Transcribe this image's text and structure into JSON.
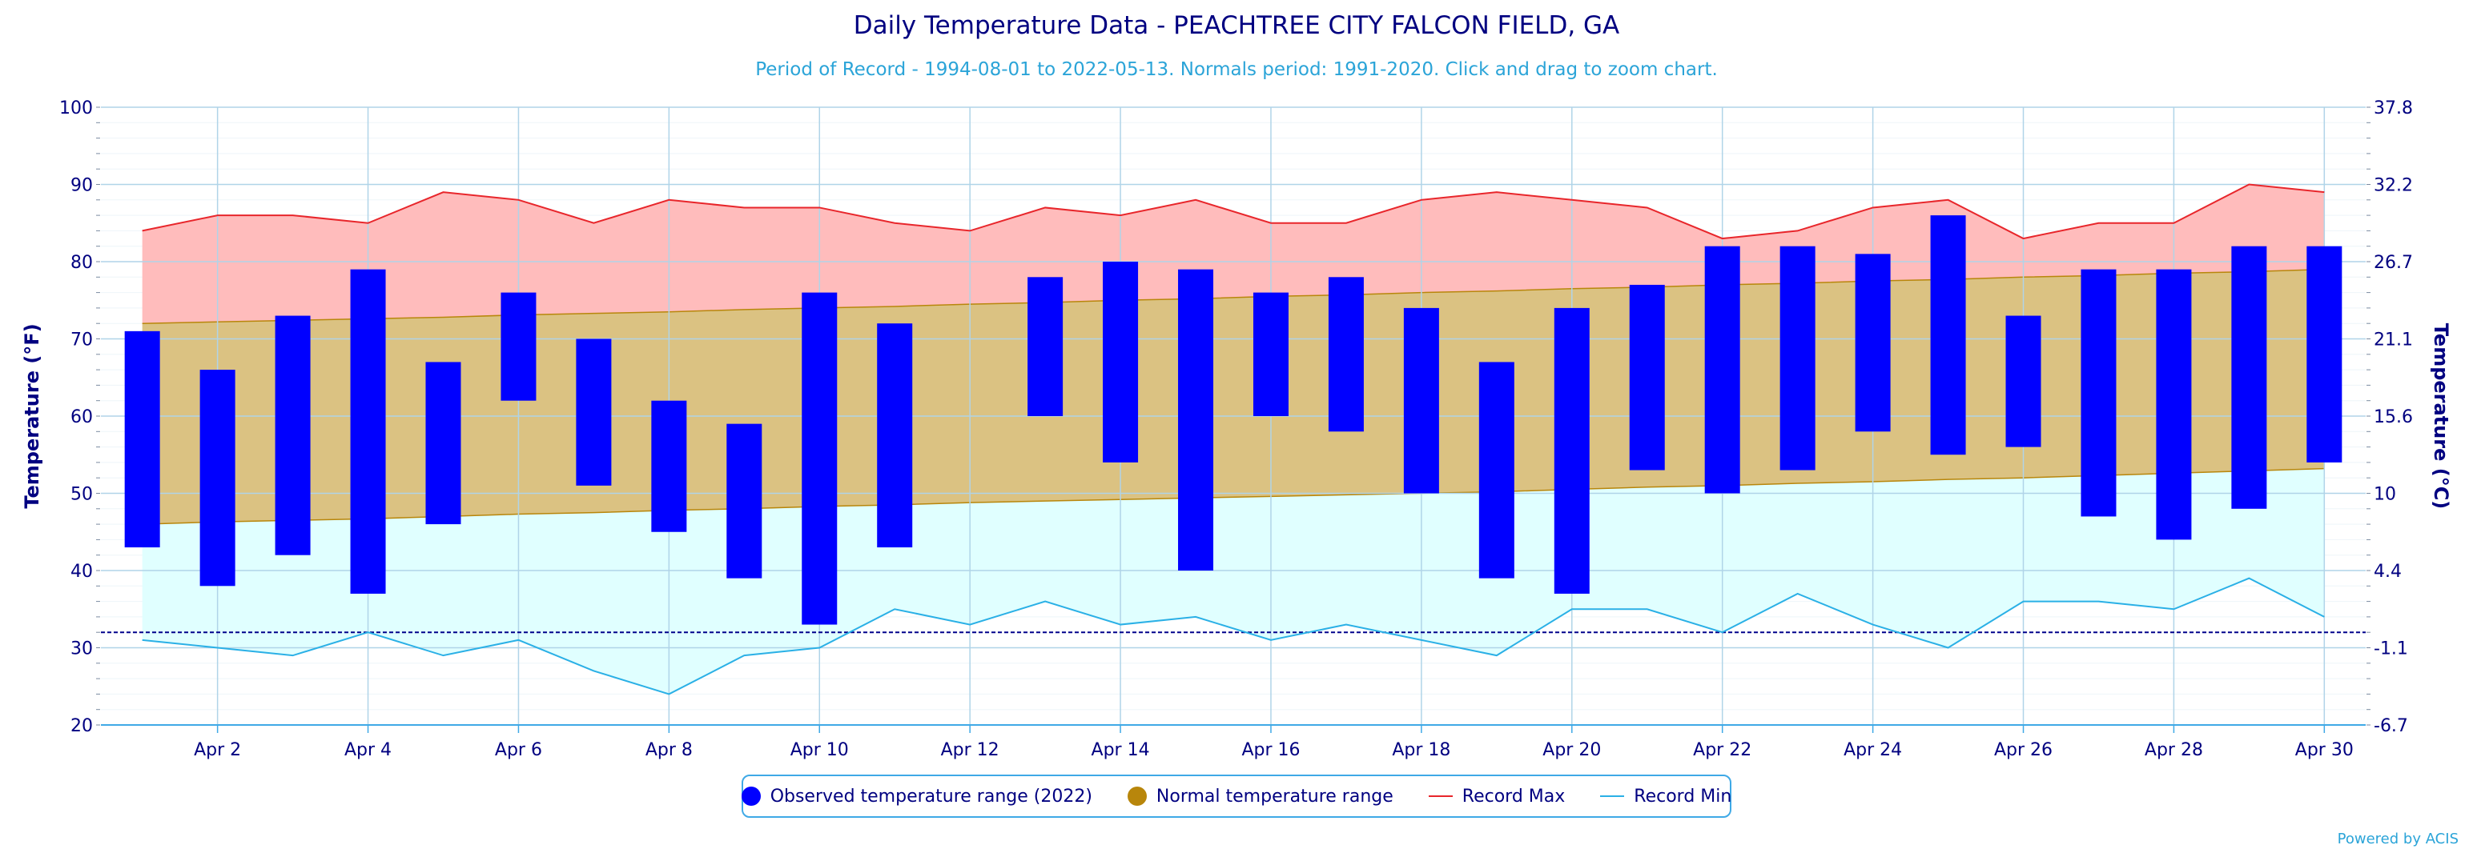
{
  "title": "Daily Temperature Data - PEACHTREE CITY FALCON FIELD, GA",
  "subtitle": "Period of Record - 1994-08-01 to 2022-05-13. Normals period: 1991-2020. Click and drag to zoom chart.",
  "credits": "Powered by ACIS",
  "legend": {
    "observed": "Observed temperature range (2022)",
    "normal": "Normal temperature range",
    "record_max": "Record Max",
    "record_min": "Record Min"
  },
  "colors": {
    "observed": "#0000ff",
    "normal_fill": "#dbc282",
    "normal_marker": "#b8860b",
    "normal_line": "#b8860b",
    "record_max_fill": "#ffbcbc",
    "record_max_line": "#e8262b",
    "record_min_fill": "#e0ffff",
    "record_min_line": "#2ab0e6",
    "freezing_line": "#00008b",
    "axis_text": "#000080",
    "grid": "#b0d4e8"
  },
  "chart_data": {
    "type": "bar",
    "x": [
      1,
      2,
      3,
      4,
      5,
      6,
      7,
      8,
      9,
      10,
      11,
      12,
      13,
      14,
      15,
      16,
      17,
      18,
      19,
      20,
      21,
      22,
      23,
      24,
      25,
      26,
      27,
      28,
      29,
      30
    ],
    "x_tick_labels": [
      "Apr 2",
      "Apr 4",
      "Apr 6",
      "Apr 8",
      "Apr 10",
      "Apr 12",
      "Apr 14",
      "Apr 16",
      "Apr 18",
      "Apr 20",
      "Apr 22",
      "Apr 24",
      "Apr 26",
      "Apr 28",
      "Apr 30"
    ],
    "x_tick_values": [
      2,
      4,
      6,
      8,
      10,
      12,
      14,
      16,
      18,
      20,
      22,
      24,
      26,
      28,
      30
    ],
    "xlim": [
      0.45,
      30.55
    ],
    "ylabel": "Temperature (°F)",
    "ylabel_right": "Temperature (°C)",
    "ylim": [
      20,
      100
    ],
    "y_ticks": [
      20,
      30,
      40,
      50,
      60,
      70,
      80,
      90,
      100
    ],
    "y_ticks_right": [
      "-6.7",
      "-1.1",
      "4.4",
      "10",
      "15.6",
      "21.1",
      "26.7",
      "32.2",
      "37.8"
    ],
    "freezing_line": 32,
    "grid": true,
    "legend_position": "bottom-center",
    "series": [
      {
        "name": "Observed temperature range (2022)",
        "type": "columnrange",
        "low": [
          43,
          38,
          42,
          37,
          46,
          62,
          51,
          45,
          39,
          33,
          43,
          null,
          60,
          54,
          40,
          60,
          58,
          50,
          39,
          37,
          53,
          50,
          53,
          58,
          55,
          56,
          47,
          44,
          48,
          54
        ],
        "high": [
          71,
          66,
          73,
          79,
          67,
          76,
          70,
          62,
          59,
          76,
          72,
          null,
          78,
          80,
          79,
          76,
          78,
          74,
          67,
          74,
          77,
          82,
          82,
          81,
          86,
          73,
          79,
          79,
          82,
          82
        ]
      },
      {
        "name": "Normal temperature range",
        "type": "arearange",
        "low": [
          46,
          46.3,
          46.5,
          46.7,
          47,
          47.3,
          47.5,
          47.8,
          48,
          48.3,
          48.5,
          48.8,
          49,
          49.2,
          49.4,
          49.6,
          49.8,
          50,
          50.2,
          50.5,
          50.8,
          51,
          51.3,
          51.5,
          51.8,
          52,
          52.3,
          52.6,
          52.9,
          53.2
        ],
        "high": [
          72,
          72.2,
          72.4,
          72.6,
          72.8,
          73.1,
          73.3,
          73.5,
          73.8,
          74,
          74.2,
          74.5,
          74.7,
          75,
          75.2,
          75.5,
          75.7,
          76,
          76.2,
          76.5,
          76.7,
          77,
          77.2,
          77.5,
          77.7,
          78,
          78.2,
          78.5,
          78.7,
          79
        ]
      },
      {
        "name": "Record Max",
        "type": "line",
        "values": [
          84,
          86,
          86,
          85,
          89,
          88,
          85,
          88,
          87,
          87,
          85,
          84,
          87,
          86,
          88,
          85,
          85,
          88,
          89,
          88,
          87,
          83,
          84,
          87,
          88,
          83,
          85,
          85,
          90,
          89
        ]
      },
      {
        "name": "Record Min",
        "type": "line",
        "values": [
          31,
          30,
          29,
          32,
          29,
          31,
          27,
          24,
          29,
          30,
          35,
          33,
          36,
          33,
          34,
          31,
          33,
          31,
          29,
          35,
          35,
          32,
          37,
          33,
          30,
          36,
          36,
          35,
          39,
          34
        ]
      }
    ]
  }
}
